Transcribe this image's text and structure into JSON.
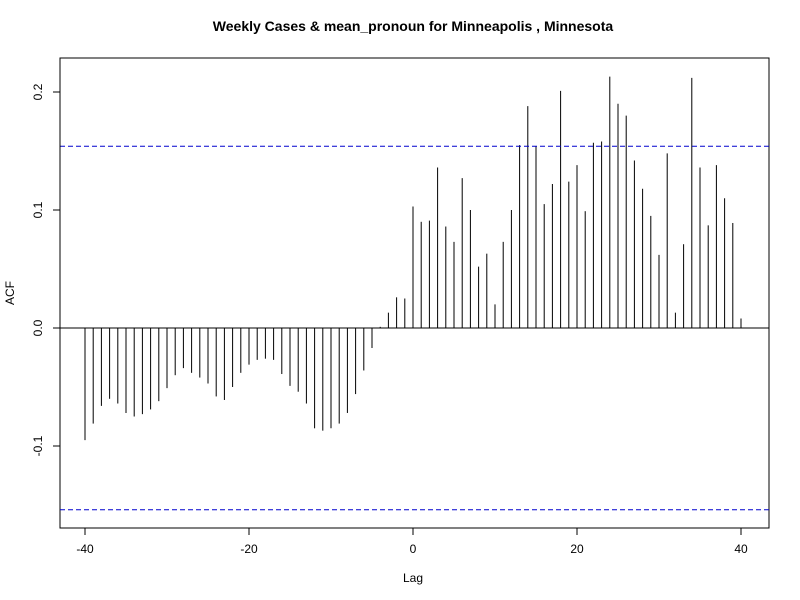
{
  "chart_data": {
    "type": "bar",
    "title": "Weekly Cases & mean_pronoun for Minneapolis , Minnesota",
    "xlabel": "Lag",
    "ylabel": "ACF",
    "xlim": [
      -40,
      40
    ],
    "ylim": [
      -0.16,
      0.22
    ],
    "x_ticks": [
      {
        "value": -40,
        "label": "-40"
      },
      {
        "value": -20,
        "label": "-20"
      },
      {
        "value": 0,
        "label": "0"
      },
      {
        "value": 20,
        "label": "20"
      },
      {
        "value": 40,
        "label": "40"
      }
    ],
    "y_ticks": [
      {
        "value": -0.1,
        "label": "-0.1"
      },
      {
        "value": 0.0,
        "label": "0.0"
      },
      {
        "value": 0.1,
        "label": "0.1"
      },
      {
        "value": 0.2,
        "label": "0.2"
      }
    ],
    "grid": false,
    "zero_line": 0,
    "confidence_limits": [
      0.154,
      -0.154
    ],
    "colors": {
      "bars": "#000000",
      "confidence": "#0000cd",
      "axis": "#000000"
    },
    "lags": [
      -40,
      -39,
      -38,
      -37,
      -36,
      -35,
      -34,
      -33,
      -32,
      -31,
      -30,
      -29,
      -28,
      -27,
      -26,
      -25,
      -24,
      -23,
      -22,
      -21,
      -20,
      -19,
      -18,
      -17,
      -16,
      -15,
      -14,
      -13,
      -12,
      -11,
      -10,
      -9,
      -8,
      -7,
      -6,
      -5,
      -4,
      -3,
      -2,
      -1,
      0,
      1,
      2,
      3,
      4,
      5,
      6,
      7,
      8,
      9,
      10,
      11,
      12,
      13,
      14,
      15,
      16,
      17,
      18,
      19,
      20,
      21,
      22,
      23,
      24,
      25,
      26,
      27,
      28,
      29,
      30,
      31,
      32,
      33,
      34,
      35,
      36,
      37,
      38,
      39,
      40
    ],
    "values": [
      -0.095,
      -0.081,
      -0.066,
      -0.06,
      -0.064,
      -0.072,
      -0.075,
      -0.073,
      -0.069,
      -0.062,
      -0.051,
      -0.04,
      -0.034,
      -0.038,
      -0.042,
      -0.047,
      -0.058,
      -0.061,
      -0.05,
      -0.038,
      -0.031,
      -0.027,
      -0.026,
      -0.027,
      -0.039,
      -0.049,
      -0.054,
      -0.064,
      -0.085,
      -0.087,
      -0.085,
      -0.081,
      -0.072,
      -0.056,
      -0.036,
      -0.017,
      0.001,
      0.013,
      0.026,
      0.025,
      0.103,
      0.09,
      0.091,
      0.136,
      0.086,
      0.073,
      0.127,
      0.1,
      0.052,
      0.063,
      0.02,
      0.073,
      0.1,
      0.155,
      0.188,
      0.154,
      0.105,
      0.122,
      0.201,
      0.124,
      0.138,
      0.099,
      0.157,
      0.158,
      0.213,
      0.19,
      0.18,
      0.142,
      0.118,
      0.095,
      0.062,
      0.148,
      0.013,
      0.071,
      0.212,
      0.136,
      0.087,
      0.138,
      0.11,
      0.089,
      0.008
    ]
  }
}
